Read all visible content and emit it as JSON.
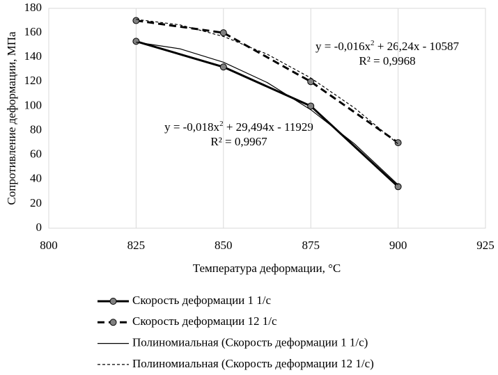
{
  "chart_data": {
    "type": "line",
    "x_label": "Температура деформации, °C",
    "y_label": "Сопротивление деформации, МПа",
    "xlim": [
      800,
      925
    ],
    "xticks": [
      800,
      825,
      850,
      875,
      900,
      925
    ],
    "ylim": [
      0,
      180
    ],
    "yticks": [
      0,
      20,
      40,
      60,
      80,
      100,
      120,
      140,
      160,
      180
    ],
    "grid": "x",
    "series": [
      {
        "name": "Скорость деформации 1 1/с",
        "color": "#000000",
        "style": "solid",
        "width": 3,
        "marker": true,
        "x": [
          825,
          850,
          875,
          900
        ],
        "values": [
          153,
          132,
          100,
          34
        ]
      },
      {
        "name": "Скорость деформации 12 1/с",
        "color": "#000000",
        "style": "dashed",
        "width": 3,
        "marker": true,
        "x": [
          825,
          850,
          875,
          900
        ],
        "values": [
          170,
          160,
          120,
          70
        ]
      },
      {
        "name": "Полиномиальная (Скорость деформации 1 1/с)",
        "color": "#000000",
        "style": "solid",
        "width": 1.2,
        "marker": false,
        "x": [
          825,
          837.5,
          850,
          862.5,
          875,
          887.5,
          900
        ],
        "values": [
          152.3,
          146.9,
          135.9,
          119.3,
          97.0,
          69.1,
          35.6
        ]
      },
      {
        "name": "Полиномиальная (Скорость деформации 12 1/с)",
        "color": "#000000",
        "style": "dotted",
        "width": 1.2,
        "marker": false,
        "x": [
          825,
          837.5,
          850,
          862.5,
          875,
          887.5,
          900
        ],
        "values": [
          171,
          166.5,
          157,
          142.5,
          123,
          98.5,
          69
        ]
      }
    ],
    "annotations": [
      {
        "parts": [
          "y = -0,016x",
          "2",
          " + 26,24x - 10587"
        ],
        "r2": "R² = 0,9968"
      },
      {
        "parts": [
          "y = -0,018x",
          "2",
          " + 29,494x - 11929"
        ],
        "r2": "R² = 0,9967"
      }
    ]
  }
}
